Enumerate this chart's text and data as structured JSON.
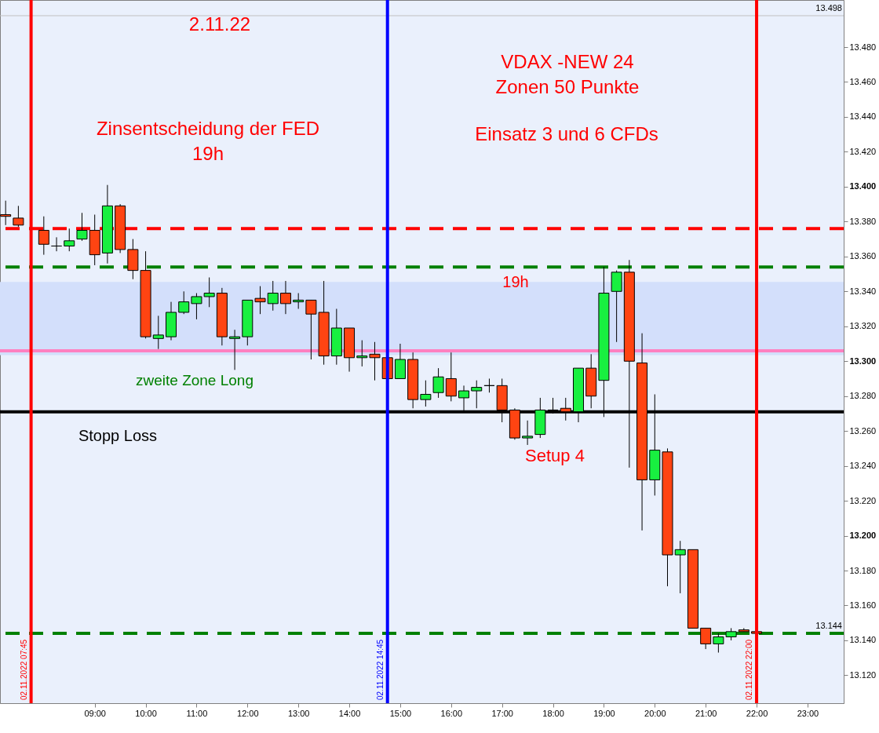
{
  "chart_data": {
    "type": "candlestick",
    "x": [
      "2022-11-02T07:15",
      "2022-11-02T07:30",
      "2022-11-02T08:00",
      "2022-11-02T08:15",
      "2022-11-02T08:30",
      "2022-11-02T08:45",
      "2022-11-02T09:00",
      "2022-11-02T09:15",
      "2022-11-02T09:30",
      "2022-11-02T09:45",
      "2022-11-02T10:00",
      "2022-11-02T10:15",
      "2022-11-02T10:30",
      "2022-11-02T10:45",
      "2022-11-02T11:00",
      "2022-11-02T11:15",
      "2022-11-02T11:30",
      "2022-11-02T11:45",
      "2022-11-02T12:00",
      "2022-11-02T12:15",
      "2022-11-02T12:30",
      "2022-11-02T12:45",
      "2022-11-02T13:00",
      "2022-11-02T13:15",
      "2022-11-02T13:30",
      "2022-11-02T13:45",
      "2022-11-02T14:00",
      "2022-11-02T14:15",
      "2022-11-02T14:30",
      "2022-11-02T14:45",
      "2022-11-02T15:00",
      "2022-11-02T15:15",
      "2022-11-02T15:30",
      "2022-11-02T15:45",
      "2022-11-02T16:00",
      "2022-11-02T16:15",
      "2022-11-02T16:30",
      "2022-11-02T16:45",
      "2022-11-02T17:00",
      "2022-11-02T17:15",
      "2022-11-02T17:30",
      "2022-11-02T17:45",
      "2022-11-02T18:00",
      "2022-11-02T18:15",
      "2022-11-02T18:30",
      "2022-11-02T18:45",
      "2022-11-02T19:00",
      "2022-11-02T19:15",
      "2022-11-02T19:30",
      "2022-11-02T19:45",
      "2022-11-02T20:00",
      "2022-11-02T20:15",
      "2022-11-02T20:30",
      "2022-11-02T20:45",
      "2022-11-02T21:00",
      "2022-11-02T21:15",
      "2022-11-02T21:30",
      "2022-11-02T21:45",
      "2022-11-02T22:00"
    ],
    "ohlc": [
      [
        13384,
        13392,
        13378,
        13383
      ],
      [
        13382,
        13389,
        13377,
        13378
      ],
      [
        13375,
        13383,
        13361,
        13367
      ],
      [
        13366,
        13371,
        13363,
        13366
      ],
      [
        13366,
        13376,
        13363,
        13369
      ],
      [
        13370,
        13385,
        13369,
        13375
      ],
      [
        13375,
        13384,
        13355,
        13361
      ],
      [
        13362,
        13401,
        13356,
        13389
      ],
      [
        13389,
        13390,
        13362,
        13364
      ],
      [
        13364,
        13370,
        13347,
        13352
      ],
      [
        13352,
        13363,
        13313,
        13314
      ],
      [
        13313,
        13326,
        13307,
        13315
      ],
      [
        13314,
        13334,
        13312,
        13328
      ],
      [
        13328,
        13340,
        13327,
        13334
      ],
      [
        13333,
        13339,
        13324,
        13337
      ],
      [
        13337,
        13348,
        13331,
        13339
      ],
      [
        13339,
        13342,
        13309,
        13314
      ],
      [
        13313,
        13318,
        13295,
        13314
      ],
      [
        13314,
        13335,
        13309,
        13335
      ],
      [
        13336,
        13343,
        13327,
        13334
      ],
      [
        13333,
        13346,
        13329,
        13339
      ],
      [
        13339,
        13346,
        13327,
        13333
      ],
      [
        13334,
        13339,
        13330,
        13335
      ],
      [
        13335,
        13335,
        13301,
        13327
      ],
      [
        13328,
        13346,
        13298,
        13303
      ],
      [
        13303,
        13330,
        13298,
        13319
      ],
      [
        13319,
        13319,
        13294,
        13302
      ],
      [
        13302,
        13312,
        13297,
        13303
      ],
      [
        13304,
        13311,
        13289,
        13302
      ],
      [
        13302,
        13302,
        13290,
        13290
      ],
      [
        13290,
        13310,
        13290,
        13301
      ],
      [
        13301,
        13305,
        13273,
        13278
      ],
      [
        13278,
        13289,
        13274,
        13281
      ],
      [
        13282,
        13296,
        13279,
        13291
      ],
      [
        13290,
        13305,
        13277,
        13280
      ],
      [
        13279,
        13286,
        13271,
        13283
      ],
      [
        13283,
        13289,
        13273,
        13285
      ],
      [
        13286,
        13290,
        13282,
        13286
      ],
      [
        13286,
        13290,
        13265,
        13272
      ],
      [
        13272,
        13273,
        13255,
        13256
      ],
      [
        13256,
        13266,
        13252,
        13257
      ],
      [
        13258,
        13279,
        13256,
        13272
      ],
      [
        13272,
        13279,
        13270,
        13272
      ],
      [
        13273,
        13279,
        13266,
        13271
      ],
      [
        13271,
        13296,
        13265,
        13296
      ],
      [
        13296,
        13304,
        13273,
        13280
      ],
      [
        13289,
        13354,
        13268,
        13339
      ],
      [
        13340,
        13352,
        13311,
        13351
      ],
      [
        13351,
        13358,
        13239,
        13300
      ],
      [
        13299,
        13316,
        13203,
        13232
      ],
      [
        13232,
        13281,
        13223,
        13249
      ],
      [
        13248,
        13250,
        13171,
        13189
      ],
      [
        13189,
        13197,
        13167,
        13192
      ],
      [
        13192,
        13192,
        13147,
        13147
      ],
      [
        13147,
        13147,
        13135,
        13138
      ],
      [
        13138,
        13144,
        13133,
        13142
      ],
      [
        13142,
        13147,
        13140,
        13145
      ],
      [
        13146,
        13147,
        13145,
        13145
      ],
      [
        13145,
        13145,
        13144,
        13144
      ]
    ],
    "colors": [
      "#ff4412",
      "#ff4412",
      "#ff4412",
      "#000000",
      "#18f040",
      "#18f040",
      "#ff4412",
      "#18f040",
      "#ff4412",
      "#ff4412",
      "#ff4412",
      "#18f040",
      "#18f040",
      "#18f040",
      "#18f040",
      "#18f040",
      "#ff4412",
      "#18f040",
      "#18f040",
      "#ff4412",
      "#18f040",
      "#ff4412",
      "#18f040",
      "#ff4412",
      "#ff4412",
      "#18f040",
      "#ff4412",
      "#18f040",
      "#ff4412",
      "#ff4412",
      "#18f040",
      "#ff4412",
      "#18f040",
      "#18f040",
      "#ff4412",
      "#18f040",
      "#18f040",
      "#000000",
      "#ff4412",
      "#ff4412",
      "#18f040",
      "#18f040",
      "#000000",
      "#ff4412",
      "#18f040",
      "#ff4412",
      "#18f040",
      "#18f040",
      "#ff4412",
      "#ff4412",
      "#18f040",
      "#ff4412",
      "#18f040",
      "#ff4412",
      "#ff4412",
      "#18f040",
      "#18f040",
      "#ff4412",
      "#ff4412"
    ],
    "xlim": [
      "2022-11-02T07:13",
      "2022-11-02T23:38"
    ],
    "xticks": [
      {
        "value": "2022-11-02T09:00",
        "label": "09:00"
      },
      {
        "value": "2022-11-02T10:00",
        "label": "10:00"
      },
      {
        "value": "2022-11-02T11:00",
        "label": "11:00"
      },
      {
        "value": "2022-11-02T12:00",
        "label": "12:00"
      },
      {
        "value": "2022-11-02T13:00",
        "label": "13:00"
      },
      {
        "value": "2022-11-02T14:00",
        "label": "14:00"
      },
      {
        "value": "2022-11-02T15:00",
        "label": "15:00"
      },
      {
        "value": "2022-11-02T16:00",
        "label": "16:00"
      },
      {
        "value": "2022-11-02T17:00",
        "label": "17:00"
      },
      {
        "value": "2022-11-02T18:00",
        "label": "18:00"
      },
      {
        "value": "2022-11-02T19:00",
        "label": "19:00"
      },
      {
        "value": "2022-11-02T20:00",
        "label": "20:00"
      },
      {
        "value": "2022-11-02T21:00",
        "label": "21:00"
      },
      {
        "value": "2022-11-02T22:00",
        "label": "22:00"
      },
      {
        "value": "2022-11-02T23:00",
        "label": "23:00"
      }
    ],
    "ylim": [
      13104,
      13507
    ],
    "yticks": [
      {
        "value": 13120,
        "label": "13.120"
      },
      {
        "value": 13140,
        "label": "13.140"
      },
      {
        "value": 13160,
        "label": "13.160"
      },
      {
        "value": 13180,
        "label": "13.180"
      },
      {
        "value": 13200,
        "label": "13.200"
      },
      {
        "value": 13220,
        "label": "13.220"
      },
      {
        "value": 13240,
        "label": "13.240"
      },
      {
        "value": 13260,
        "label": "13.260"
      },
      {
        "value": 13280,
        "label": "13.280"
      },
      {
        "value": 13300,
        "label": "13.300"
      },
      {
        "value": 13320,
        "label": "13.320"
      },
      {
        "value": 13340,
        "label": "13.340"
      },
      {
        "value": 13360,
        "label": "13.360"
      },
      {
        "value": 13380,
        "label": "13.380"
      },
      {
        "value": 13400,
        "label": "13.400"
      },
      {
        "value": 13420,
        "label": "13.420"
      },
      {
        "value": 13440,
        "label": "13.440"
      },
      {
        "value": 13460,
        "label": "13.460"
      },
      {
        "value": 13480,
        "label": "13.480"
      }
    ],
    "grid": false,
    "bands": [
      {
        "axis": "y",
        "from": 13303.5,
        "to": 13345.4,
        "color": "#d3dffb"
      }
    ],
    "ref_lines": [
      {
        "axis": "y",
        "value": 13376,
        "color": "#ff0000",
        "line_style": "dashed",
        "label": null
      },
      {
        "axis": "y",
        "value": 13354,
        "color": "#008000",
        "line_style": "dashed",
        "label": null
      },
      {
        "axis": "y",
        "value": 13306,
        "color": "#ff80c0",
        "line_style": "solid",
        "label": null
      },
      {
        "axis": "y",
        "value": 13271,
        "color": "#000000",
        "line_style": "solid",
        "label": null
      },
      {
        "axis": "y",
        "value": 13144,
        "color": "#008000",
        "line_style": "dashed",
        "label": "13.144"
      },
      {
        "axis": "y",
        "value": 13498,
        "color": "#c0c0c0",
        "line_style": "solid",
        "label": "13.498"
      },
      {
        "axis": "x",
        "value": "2022-11-02T07:45",
        "color": "#ff0000",
        "line_style": "solid",
        "label": "02.11.2022 07:45"
      },
      {
        "axis": "x",
        "value": "2022-11-02T14:45",
        "color": "#0000ff",
        "line_style": "solid",
        "label": "02.11.2022 14:45"
      },
      {
        "axis": "x",
        "value": "2022-11-02T22:00",
        "color": "#ff0000",
        "line_style": "solid",
        "label": "02.11.2022 22:00"
      }
    ],
    "annotations": [
      "2.11.22",
      "VDAX -NEW 24\nZonen 50  Punkte",
      "Zinsentscheidung der FED\n19h",
      "Einsatz  3 und 6 CFDs",
      "19h",
      "zweite Zone Long",
      "Stopp Loss",
      "Setup 4"
    ]
  }
}
